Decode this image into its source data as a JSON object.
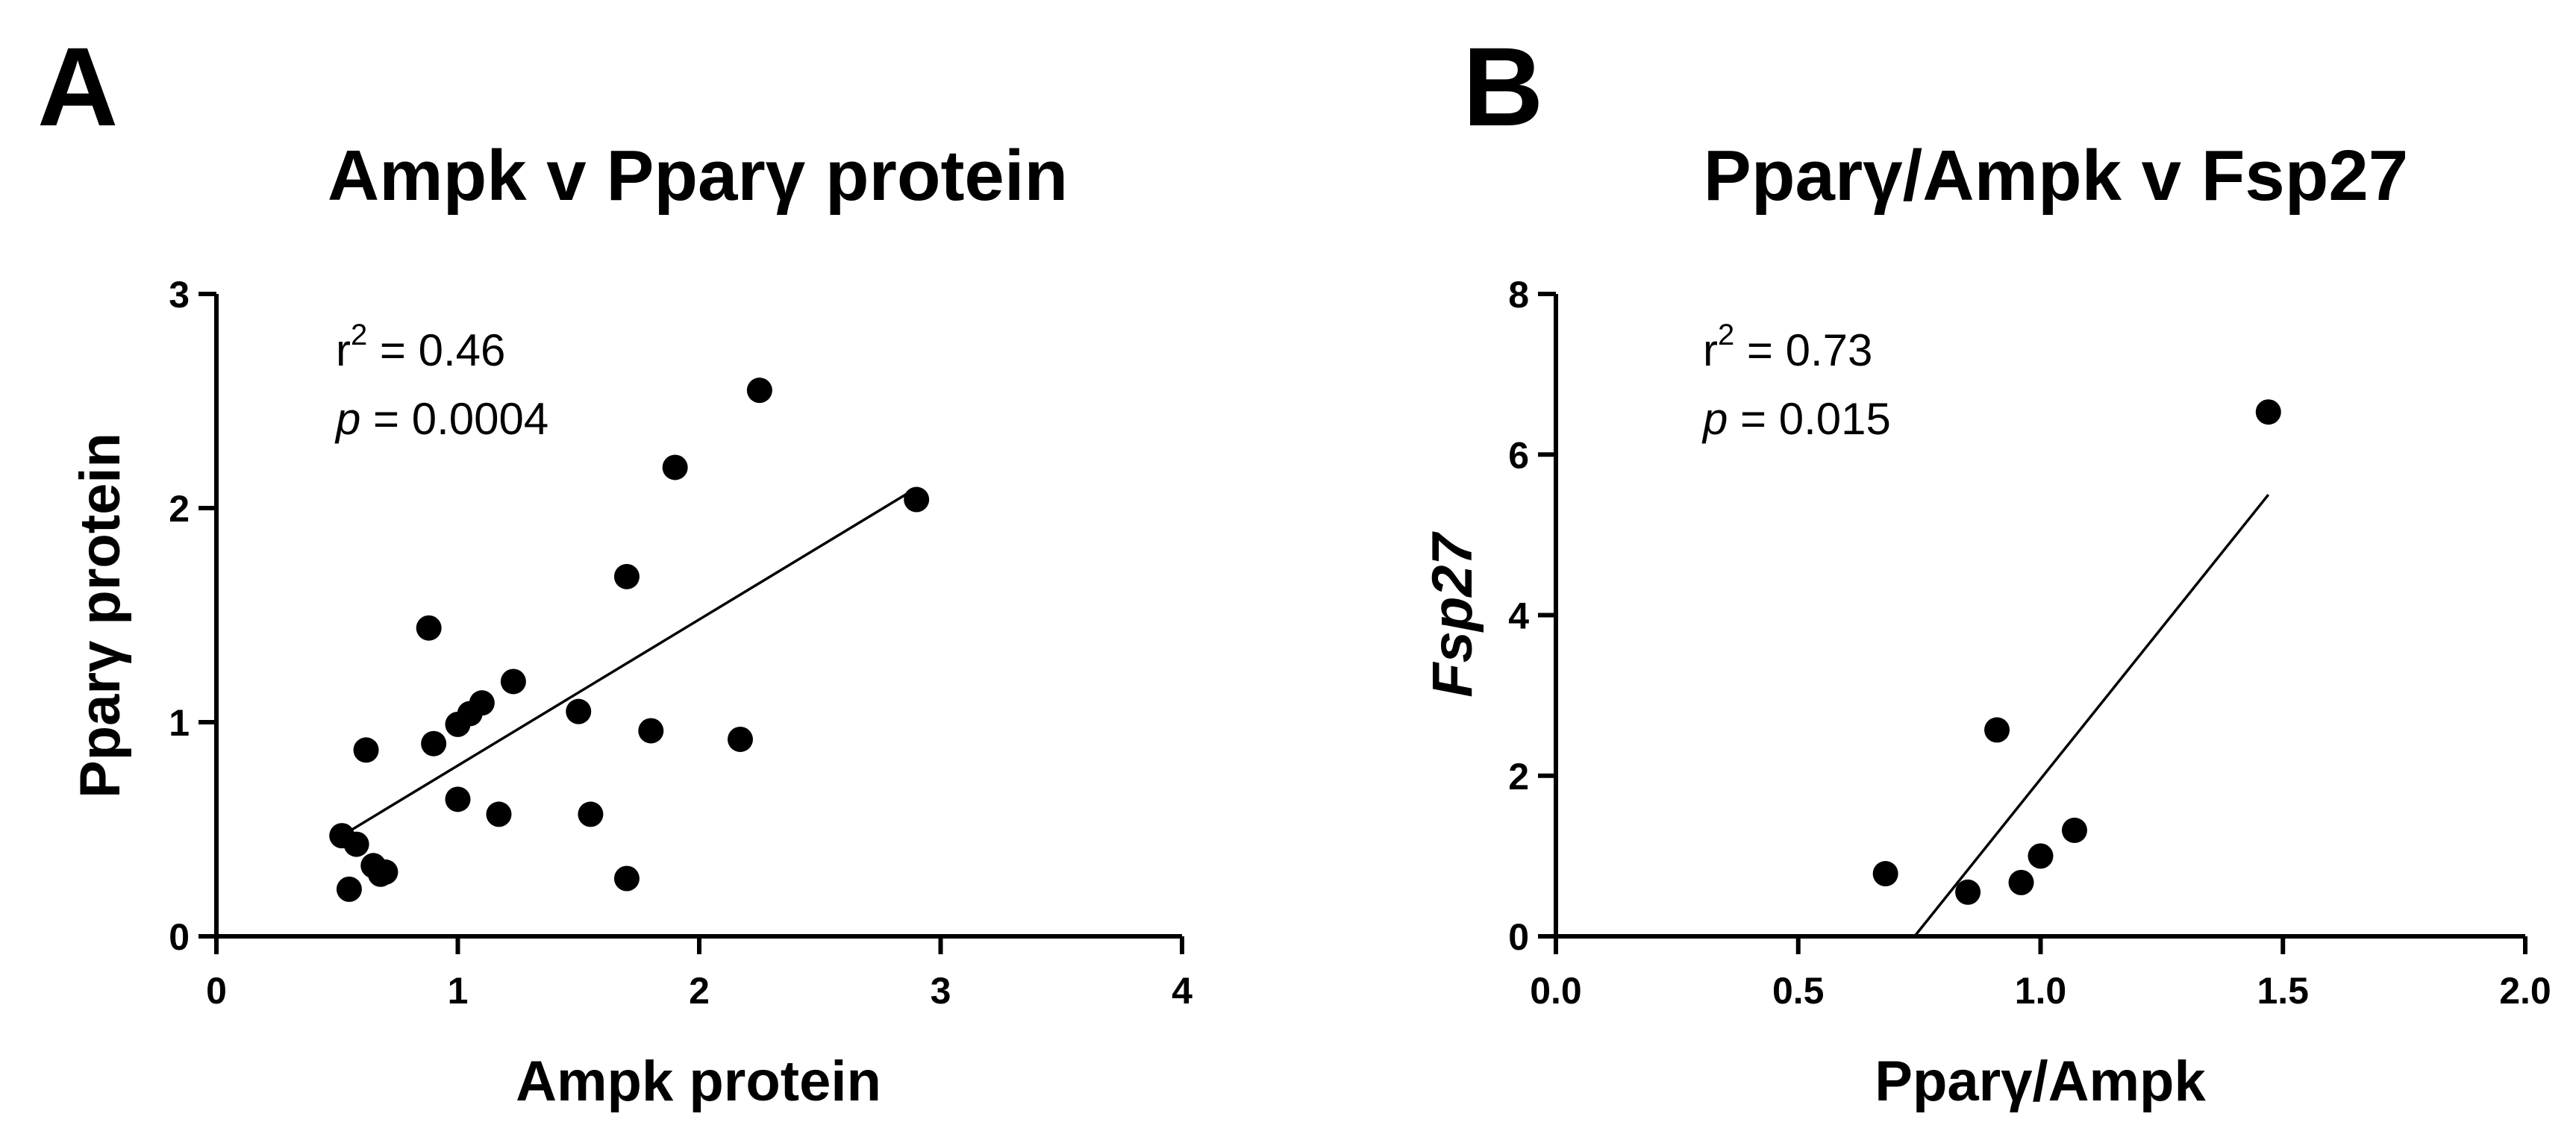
{
  "chart_data": [
    {
      "type": "scatter",
      "panel": "A",
      "title": "Ampk v Pparγ protein",
      "xlabel": "Ampk protein",
      "ylabel": "Pparγ protein",
      "ylabel_italic": false,
      "xlim": [
        0,
        4
      ],
      "ylim": [
        0,
        3
      ],
      "xticks": [
        0,
        1,
        2,
        3,
        4
      ],
      "yticks": [
        0,
        1,
        2,
        3
      ],
      "xtick_labels": [
        "0",
        "1",
        "2",
        "3",
        "4"
      ],
      "ytick_labels": [
        "0",
        "1",
        "2",
        "3"
      ],
      "stats": {
        "r2_prefix": "r",
        "r2_exp": "2",
        "r2_text": " = 0.46",
        "p_label": "p",
        "p_text": " = 0.0004"
      },
      "regression_line": {
        "x1": 0.52,
        "y1": 0.47,
        "x2": 2.88,
        "y2": 2.08
      },
      "x": [
        0.52,
        0.55,
        0.58,
        0.62,
        0.65,
        0.68,
        0.7,
        0.88,
        0.9,
        1.0,
        1.0,
        1.05,
        1.1,
        1.17,
        1.23,
        1.5,
        1.55,
        1.7,
        1.7,
        1.8,
        1.9,
        2.17,
        2.25,
        2.9
      ],
      "y": [
        0.47,
        0.22,
        0.43,
        0.87,
        0.33,
        0.29,
        0.3,
        1.44,
        0.9,
        0.99,
        0.64,
        1.04,
        1.09,
        0.57,
        1.19,
        1.05,
        0.57,
        1.68,
        0.27,
        0.96,
        2.19,
        0.92,
        2.55,
        2.04
      ]
    },
    {
      "type": "scatter",
      "panel": "B",
      "title": "Pparγ/Ampk v Fsp27",
      "xlabel": "Pparγ/Ampk",
      "ylabel": "Fsp27",
      "ylabel_italic": true,
      "xlim": [
        0,
        2
      ],
      "ylim": [
        0,
        8
      ],
      "xticks": [
        0,
        0.5,
        1.0,
        1.5,
        2.0
      ],
      "yticks": [
        0,
        2,
        4,
        6,
        8
      ],
      "xtick_labels": [
        "0.0",
        "0.5",
        "1.0",
        "1.5",
        "2.0"
      ],
      "ytick_labels": [
        "0",
        "2",
        "4",
        "6",
        "8"
      ],
      "stats": {
        "r2_prefix": "r",
        "r2_exp": "2",
        "r2_text": " = 0.73",
        "p_label": "p",
        "p_text": " = 0.015"
      },
      "regression_line": {
        "x1": 0.74,
        "y1": 0.0,
        "x2": 1.47,
        "y2": 5.5
      },
      "x": [
        0.68,
        0.85,
        0.91,
        0.96,
        1.0,
        1.07,
        1.47
      ],
      "y": [
        0.78,
        0.55,
        2.57,
        0.67,
        1.0,
        1.32,
        6.53
      ]
    }
  ]
}
